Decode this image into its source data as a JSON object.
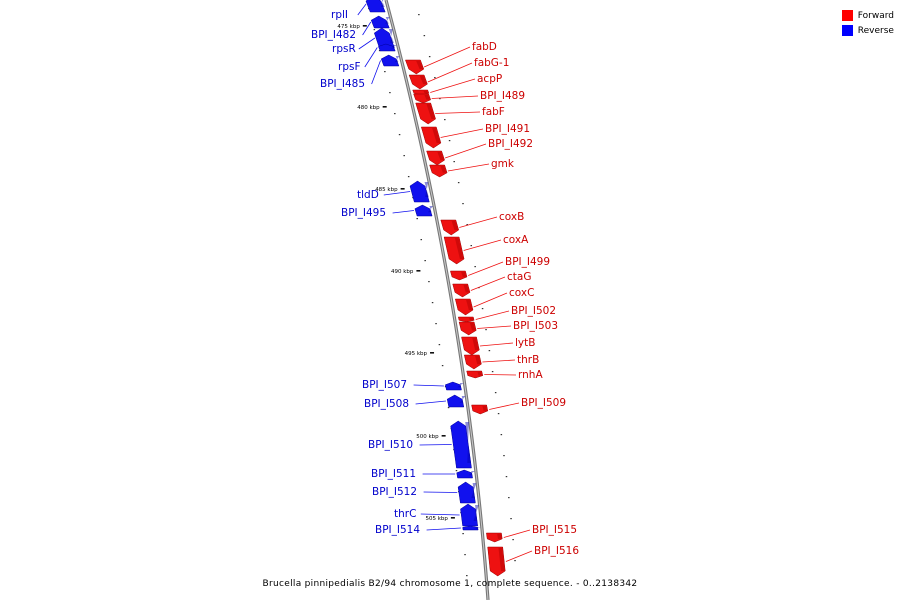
{
  "caption": "Brucella pinnipedialis B2/94 chromosome 1, complete sequence. - 0..2138342",
  "legend": [
    {
      "label": "Forward",
      "color": "#ff0000"
    },
    {
      "label": "Reverse",
      "color": "#0000ff"
    }
  ],
  "colors": {
    "forward": "#ee1111",
    "reverse": "#1111ee",
    "backbone": "#888888"
  },
  "ticks": [
    "475 kbp",
    "480 kbp",
    "485 kbp",
    "490 kbp",
    "495 kbp",
    "500 kbp",
    "505 kbp"
  ],
  "genes": [
    {
      "name": "rplI",
      "strand": "reverse"
    },
    {
      "name": "BPI_I482",
      "strand": "reverse"
    },
    {
      "name": "rpsR",
      "strand": "reverse"
    },
    {
      "name": "rpsF",
      "strand": "reverse"
    },
    {
      "name": "BPI_I485",
      "strand": "reverse"
    },
    {
      "name": "fabD",
      "strand": "forward"
    },
    {
      "name": "fabG-1",
      "strand": "forward"
    },
    {
      "name": "acpP",
      "strand": "forward"
    },
    {
      "name": "BPI_I489",
      "strand": "forward"
    },
    {
      "name": "fabF",
      "strand": "forward"
    },
    {
      "name": "BPI_I491",
      "strand": "forward"
    },
    {
      "name": "BPI_I492",
      "strand": "forward"
    },
    {
      "name": "gmk",
      "strand": "forward"
    },
    {
      "name": "tldD",
      "strand": "reverse"
    },
    {
      "name": "BPI_I495",
      "strand": "reverse"
    },
    {
      "name": "coxB",
      "strand": "forward"
    },
    {
      "name": "coxA",
      "strand": "forward"
    },
    {
      "name": "BPI_I499",
      "strand": "forward"
    },
    {
      "name": "ctaG",
      "strand": "forward"
    },
    {
      "name": "coxC",
      "strand": "forward"
    },
    {
      "name": "BPI_I502",
      "strand": "forward"
    },
    {
      "name": "BPI_I503",
      "strand": "forward"
    },
    {
      "name": "lytB",
      "strand": "forward"
    },
    {
      "name": "thrB",
      "strand": "forward"
    },
    {
      "name": "rnhA",
      "strand": "forward"
    },
    {
      "name": "BPI_I507",
      "strand": "reverse"
    },
    {
      "name": "BPI_I508",
      "strand": "reverse"
    },
    {
      "name": "BPI_I509",
      "strand": "forward"
    },
    {
      "name": "BPI_I510",
      "strand": "reverse"
    },
    {
      "name": "BPI_I511",
      "strand": "reverse"
    },
    {
      "name": "BPI_I512",
      "strand": "reverse"
    },
    {
      "name": "thrC",
      "strand": "reverse"
    },
    {
      "name": "BPI_I514",
      "strand": "reverse"
    },
    {
      "name": "BPI_I515",
      "strand": "forward"
    },
    {
      "name": "BPI_I516",
      "strand": "forward"
    }
  ]
}
